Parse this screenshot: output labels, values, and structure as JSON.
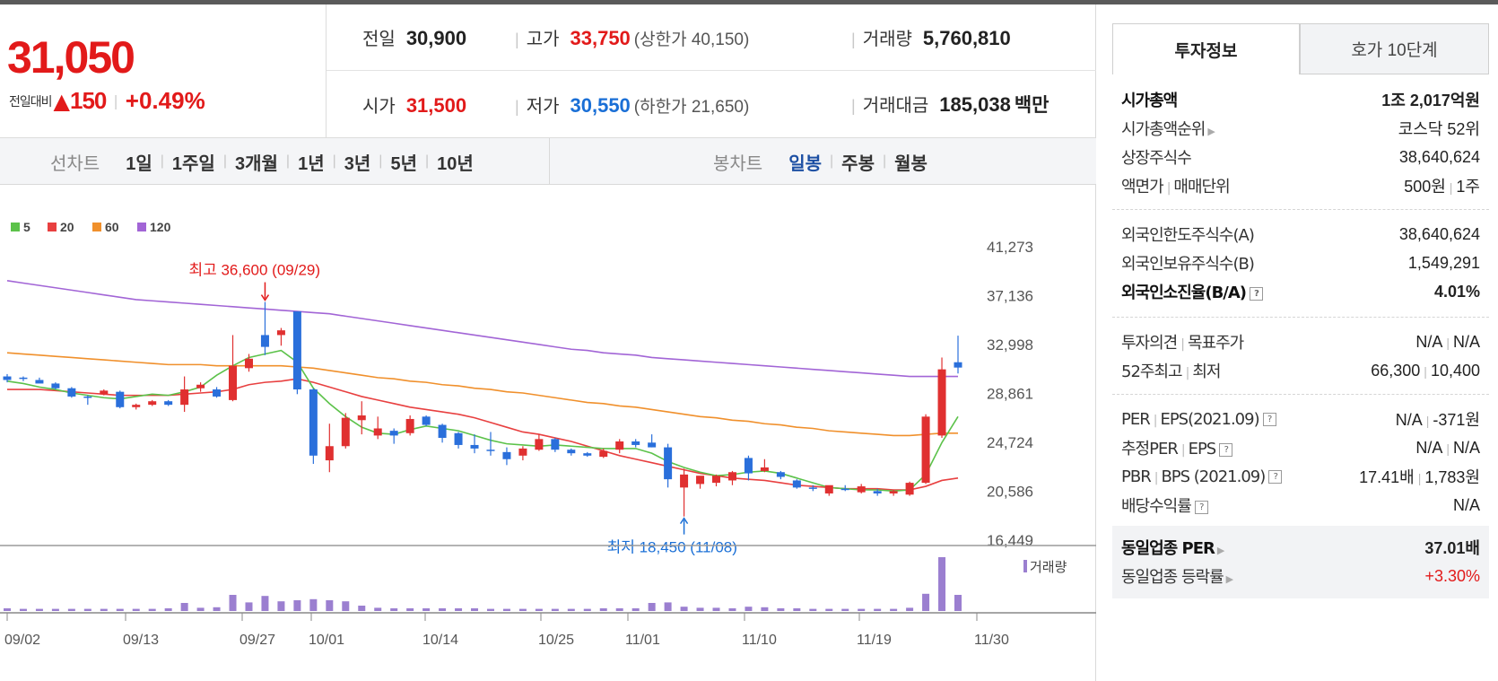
{
  "price": {
    "current": "31,050",
    "change_label": "전일대비",
    "change_amount": "150",
    "change_pct": "+0.49%"
  },
  "quote": {
    "prev_label": "전일",
    "prev_value": "30,900",
    "high_label": "고가",
    "high_value": "33,750",
    "high_limit": "(상한가 40,150)",
    "volume_label": "거래량",
    "volume_value": "5,760,810",
    "open_label": "시가",
    "open_value": "31,500",
    "low_label": "저가",
    "low_value": "30,550",
    "low_limit": "(하한가 21,650)",
    "amount_label": "거래대금",
    "amount_value": "185,038",
    "amount_unit": "백만"
  },
  "line_tabs": {
    "title": "선차트",
    "items": [
      "1일",
      "1주일",
      "3개월",
      "1년",
      "3년",
      "5년",
      "10년"
    ]
  },
  "candle_tabs": {
    "title": "봉차트",
    "items": [
      "일봉",
      "주봉",
      "월봉"
    ],
    "active": 0
  },
  "chart_data": {
    "type": "candlestick",
    "legend": [
      {
        "name": "5",
        "color": "#5cc24a"
      },
      {
        "name": "20",
        "color": "#e84040"
      },
      {
        "name": "60",
        "color": "#f0902c"
      },
      {
        "name": "120",
        "color": "#a265d6"
      }
    ],
    "y_ticks": [
      "41,273",
      "37,136",
      "32,998",
      "28,861",
      "24,724",
      "20,586",
      "16,449"
    ],
    "ylim": [
      16449,
      41273
    ],
    "x_ticks": [
      "09/02",
      "09/13",
      "09/27",
      "10/01",
      "10/14",
      "10/25",
      "11/01",
      "11/10",
      "11/19",
      "11/30"
    ],
    "high_annotation": "최고 36,600 (09/29)",
    "low_annotation": "최저 18,450 (11/08)",
    "volume_label": "거래량",
    "candles": [
      {
        "o": 30300,
        "h": 30500,
        "l": 29800,
        "c": 30000
      },
      {
        "o": 30200,
        "h": 30300,
        "l": 29900,
        "c": 30100
      },
      {
        "o": 30000,
        "h": 30200,
        "l": 29800,
        "c": 29700
      },
      {
        "o": 29700,
        "h": 29800,
        "l": 29200,
        "c": 29300
      },
      {
        "o": 29300,
        "h": 29400,
        "l": 28500,
        "c": 28600
      },
      {
        "o": 28600,
        "h": 28700,
        "l": 27900,
        "c": 28500
      },
      {
        "o": 28800,
        "h": 29200,
        "l": 28700,
        "c": 29100
      },
      {
        "o": 29000,
        "h": 29100,
        "l": 27600,
        "c": 27700
      },
      {
        "o": 27700,
        "h": 28000,
        "l": 27500,
        "c": 27900
      },
      {
        "o": 27900,
        "h": 28300,
        "l": 27800,
        "c": 28200
      },
      {
        "o": 28200,
        "h": 28300,
        "l": 27800,
        "c": 27900
      },
      {
        "o": 27900,
        "h": 30300,
        "l": 27300,
        "c": 29200
      },
      {
        "o": 29300,
        "h": 29800,
        "l": 29000,
        "c": 29600
      },
      {
        "o": 29200,
        "h": 29400,
        "l": 28500,
        "c": 28600
      },
      {
        "o": 28300,
        "h": 33800,
        "l": 28200,
        "c": 31200
      },
      {
        "o": 31000,
        "h": 32200,
        "l": 30700,
        "c": 31800
      },
      {
        "o": 33800,
        "h": 36600,
        "l": 32100,
        "c": 32800
      },
      {
        "o": 33800,
        "h": 34400,
        "l": 32900,
        "c": 34200
      },
      {
        "o": 35800,
        "h": 35800,
        "l": 28800,
        "c": 29200
      },
      {
        "o": 29200,
        "h": 29300,
        "l": 22900,
        "c": 23600
      },
      {
        "o": 23200,
        "h": 26300,
        "l": 22200,
        "c": 24400
      },
      {
        "o": 24400,
        "h": 27200,
        "l": 24200,
        "c": 26800
      },
      {
        "o": 26600,
        "h": 28200,
        "l": 25400,
        "c": 27000
      },
      {
        "o": 25300,
        "h": 26900,
        "l": 25000,
        "c": 25900
      },
      {
        "o": 25700,
        "h": 25900,
        "l": 24600,
        "c": 25300
      },
      {
        "o": 25500,
        "h": 27000,
        "l": 25300,
        "c": 26700
      },
      {
        "o": 26900,
        "h": 27000,
        "l": 26100,
        "c": 26200
      },
      {
        "o": 26200,
        "h": 26300,
        "l": 24700,
        "c": 25100
      },
      {
        "o": 25500,
        "h": 25600,
        "l": 24200,
        "c": 24500
      },
      {
        "o": 24500,
        "h": 25400,
        "l": 23800,
        "c": 24200
      },
      {
        "o": 24100,
        "h": 25600,
        "l": 23600,
        "c": 24000
      },
      {
        "o": 23900,
        "h": 24300,
        "l": 22800,
        "c": 23300
      },
      {
        "o": 23600,
        "h": 24400,
        "l": 23200,
        "c": 24200
      },
      {
        "o": 24100,
        "h": 25400,
        "l": 24000,
        "c": 25000
      },
      {
        "o": 25000,
        "h": 25100,
        "l": 23900,
        "c": 24100
      },
      {
        "o": 24100,
        "h": 24200,
        "l": 23600,
        "c": 23800
      },
      {
        "o": 23800,
        "h": 23900,
        "l": 23500,
        "c": 23600
      },
      {
        "o": 23500,
        "h": 24200,
        "l": 23400,
        "c": 24000
      },
      {
        "o": 24100,
        "h": 25000,
        "l": 23800,
        "c": 24800
      },
      {
        "o": 24800,
        "h": 25000,
        "l": 24300,
        "c": 24500
      },
      {
        "o": 24700,
        "h": 25400,
        "l": 24300,
        "c": 24300
      },
      {
        "o": 24300,
        "h": 24600,
        "l": 20900,
        "c": 21600
      },
      {
        "o": 20900,
        "h": 22500,
        "l": 18450,
        "c": 22000
      },
      {
        "o": 21200,
        "h": 21800,
        "l": 20800,
        "c": 21900
      },
      {
        "o": 21300,
        "h": 22000,
        "l": 21000,
        "c": 21900
      },
      {
        "o": 21500,
        "h": 22300,
        "l": 21100,
        "c": 22200
      },
      {
        "o": 23400,
        "h": 23600,
        "l": 21500,
        "c": 22100
      },
      {
        "o": 22300,
        "h": 23300,
        "l": 22200,
        "c": 22600
      },
      {
        "o": 22200,
        "h": 22300,
        "l": 21600,
        "c": 21800
      },
      {
        "o": 21500,
        "h": 21600,
        "l": 20800,
        "c": 20900
      },
      {
        "o": 20900,
        "h": 21100,
        "l": 20600,
        "c": 20800
      },
      {
        "o": 20400,
        "h": 21000,
        "l": 20200,
        "c": 21100
      },
      {
        "o": 20800,
        "h": 21100,
        "l": 20600,
        "c": 20700
      },
      {
        "o": 20500,
        "h": 21200,
        "l": 20400,
        "c": 21000
      },
      {
        "o": 20600,
        "h": 20800,
        "l": 20200,
        "c": 20400
      },
      {
        "o": 20400,
        "h": 20700,
        "l": 20200,
        "c": 20600
      },
      {
        "o": 20300,
        "h": 21400,
        "l": 20200,
        "c": 21300
      },
      {
        "o": 21300,
        "h": 27100,
        "l": 21200,
        "c": 26900
      },
      {
        "o": 25300,
        "h": 31900,
        "l": 25100,
        "c": 30900
      },
      {
        "o": 31500,
        "h": 33750,
        "l": 30550,
        "c": 31050
      }
    ],
    "volumes": [
      0.5,
      0.4,
      0.4,
      0.4,
      0.4,
      0.4,
      0.4,
      0.4,
      0.4,
      0.4,
      0.5,
      1.5,
      0.6,
      0.7,
      3.0,
      1.6,
      2.8,
      1.8,
      2.0,
      2.2,
      2.0,
      1.8,
      1.0,
      0.6,
      0.5,
      0.5,
      0.5,
      0.5,
      0.5,
      0.5,
      0.4,
      0.4,
      0.4,
      0.4,
      0.4,
      0.4,
      0.4,
      0.5,
      0.5,
      0.5,
      1.5,
      1.6,
      0.8,
      0.6,
      0.6,
      0.5,
      0.8,
      0.7,
      0.5,
      0.5,
      0.4,
      0.4,
      0.4,
      0.4,
      0.4,
      0.4,
      0.6,
      3.2,
      10.0,
      3.0
    ],
    "ma5": [
      29900,
      29700,
      29400,
      29200,
      28900,
      28700,
      28500,
      28400,
      28600,
      28800,
      28700,
      29000,
      29400,
      30400,
      31200,
      31900,
      32200,
      32500,
      31500,
      29300,
      28000,
      26900,
      26000,
      25500,
      25400,
      25800,
      26100,
      25900,
      25700,
      25300,
      24900,
      24600,
      24500,
      24400,
      24500,
      24400,
      24300,
      24200,
      24200,
      24200,
      23800,
      23100,
      22600,
      22200,
      21900,
      22000,
      22200,
      22300,
      22100,
      21700,
      21300,
      20900,
      20800,
      20700,
      20700,
      20600,
      20700,
      22000,
      24700,
      26900
    ],
    "ma20": [
      29200,
      29200,
      29200,
      29100,
      29000,
      28900,
      28800,
      28700,
      28700,
      28700,
      28700,
      28800,
      28900,
      29000,
      29200,
      29600,
      29800,
      29900,
      30100,
      29800,
      29400,
      29000,
      28600,
      28300,
      28000,
      27700,
      27500,
      27300,
      27100,
      26800,
      26400,
      26000,
      25600,
      25400,
      25100,
      24800,
      24400,
      24000,
      23600,
      23300,
      23000,
      22700,
      22400,
      22100,
      21900,
      21700,
      21600,
      21500,
      21300,
      21100,
      21000,
      20900,
      20800,
      20800,
      20800,
      20700,
      20700,
      21000,
      21500,
      21700
    ],
    "ma60": [
      32300,
      32200,
      32100,
      32000,
      31900,
      31800,
      31700,
      31600,
      31500,
      31400,
      31300,
      31300,
      31300,
      31200,
      31200,
      31200,
      31200,
      31200,
      31100,
      31000,
      30800,
      30600,
      30400,
      30200,
      30100,
      29900,
      29800,
      29600,
      29500,
      29300,
      29200,
      29000,
      28900,
      28700,
      28500,
      28300,
      28100,
      28000,
      27800,
      27700,
      27500,
      27300,
      27100,
      26900,
      26800,
      26600,
      26500,
      26300,
      26200,
      26000,
      25900,
      25700,
      25600,
      25500,
      25400,
      25300,
      25300,
      25400,
      25500,
      25500
    ],
    "ma120": [
      38400,
      38200,
      38000,
      37800,
      37600,
      37400,
      37200,
      37000,
      36800,
      36700,
      36600,
      36500,
      36400,
      36300,
      36200,
      36100,
      36000,
      35900,
      35800,
      35700,
      35600,
      35400,
      35200,
      35000,
      34800,
      34600,
      34400,
      34200,
      34000,
      33800,
      33600,
      33400,
      33200,
      33000,
      32800,
      32600,
      32500,
      32300,
      32200,
      32100,
      31900,
      31800,
      31700,
      31600,
      31500,
      31400,
      31300,
      31200,
      31100,
      31000,
      30900,
      30800,
      30700,
      30600,
      30500,
      30400,
      30300,
      30300,
      30300,
      30300
    ]
  },
  "invest_tabs": {
    "tab1": "투자정보",
    "tab2": "호가 10단계"
  },
  "invest": {
    "sec1": [
      {
        "label": "시가총액",
        "value": "1조 2,017억원"
      },
      {
        "label": "시가총액순위",
        "value": "코스닥 52위"
      },
      {
        "label": "상장주식수",
        "value": "38,640,624"
      },
      {
        "label_a": "액면가",
        "label_b": "매매단위",
        "value_a": "500원",
        "value_b": "1주"
      }
    ],
    "sec2": [
      {
        "label": "외국인한도주식수(A)",
        "value": "38,640,624"
      },
      {
        "label": "외국인보유주식수(B)",
        "value": "1,549,291"
      },
      {
        "label": "외국인소진율(B/A)",
        "value": "4.01%"
      }
    ],
    "sec3": [
      {
        "label_a": "투자의견",
        "label_b": "목표주가",
        "value_a": "N/A",
        "value_b": "N/A"
      },
      {
        "label_a": "52주최고",
        "label_b": "최저",
        "value_a": "66,300",
        "value_b": "10,400"
      }
    ],
    "sec4": [
      {
        "label_a": "PER",
        "label_b": "EPS(2021.09)",
        "value_a": "N/A",
        "value_b": "-371원"
      },
      {
        "label_a": "추정PER",
        "label_b": "EPS",
        "value_a": "N/A",
        "value_b": "N/A"
      },
      {
        "label_a": "PBR",
        "label_b": "BPS (2021.09)",
        "value_a": "17.41배",
        "value_b": "1,783원"
      },
      {
        "label": "배당수익률",
        "value": "N/A"
      }
    ],
    "peer": [
      {
        "label": "동일업종 PER",
        "value": "37.01배"
      },
      {
        "label": "동일업종 등락률",
        "value": "+3.30%"
      }
    ]
  }
}
